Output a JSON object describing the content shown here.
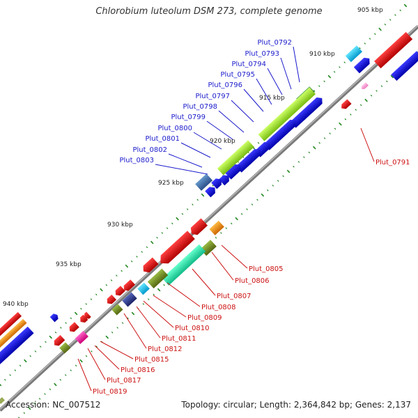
{
  "title": "Chlorobium luteolum DSM 273, complete genome",
  "footer": {
    "accession": "Accession: NC_007512",
    "summary": "Topology: circular; Length: 2,364,842 bp; Genes: 2,137"
  },
  "ticks": [
    "905 kbp",
    "910 kbp",
    "915 kbp",
    "920 kbp",
    "925 kbp",
    "930 kbp",
    "935 kbp",
    "940 kbp"
  ],
  "genes_top": [
    "Plut_0792",
    "Plut_0793",
    "Plut_0794",
    "Plut_0795",
    "Plut_0796",
    "Plut_0797",
    "Plut_0798",
    "Plut_0799",
    "Plut_0800",
    "Plut_0801",
    "Plut_0802",
    "Plut_0803"
  ],
  "genes_bottom": [
    "Plut_0791",
    "Plut_0805",
    "Plut_0806",
    "Plut_0807",
    "Plut_0808",
    "Plut_0809",
    "Plut_0810",
    "Plut_0811",
    "Plut_0812",
    "Plut_0815",
    "Plut_0816",
    "Plut_0817",
    "Plut_0819"
  ],
  "colors": {
    "backbone": "#888888",
    "tick_dot": "#228822",
    "forward_label": "#1a1acc",
    "reverse_label": "#cc1111",
    "blue_gene": "#1010dd",
    "red_gene": "#e81010",
    "lime_gene": "#aaee33",
    "teal_gene": "#33eeaa",
    "orange_gene": "#ff9900",
    "cyan_gene": "#22ccff",
    "olive_gene": "#779922",
    "steel_gene": "#4477bb",
    "magenta_gene": "#ff33aa",
    "pink_gene": "#ff99dd",
    "indigo_gene": "#334499"
  }
}
